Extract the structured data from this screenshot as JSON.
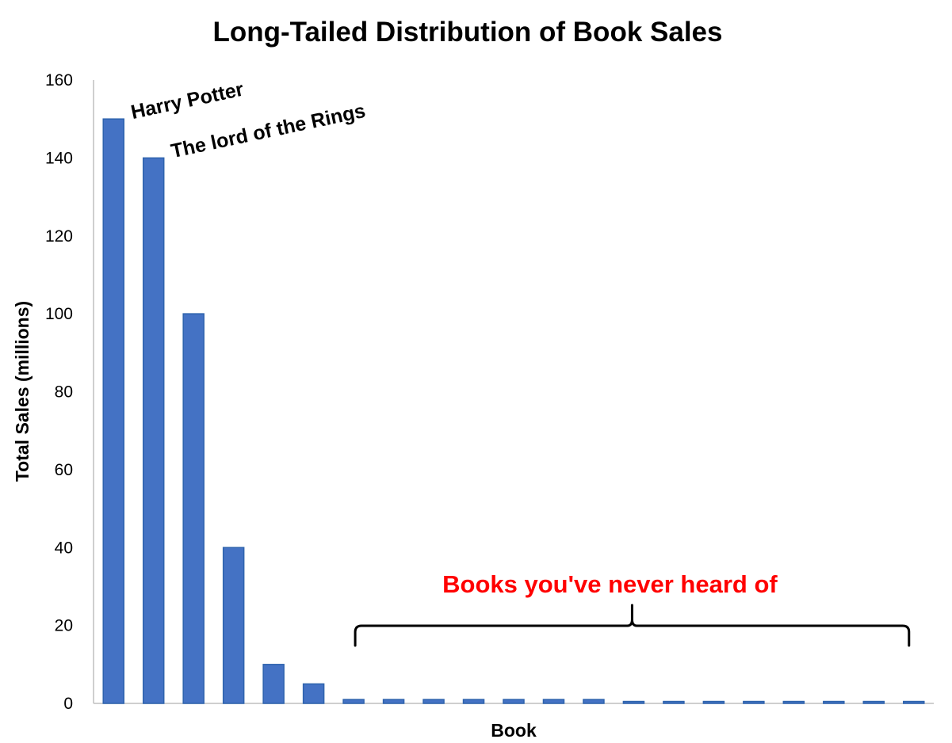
{
  "chart_data": {
    "type": "bar",
    "title": "Long-Tailed Distribution of Book Sales",
    "xlabel": "Book",
    "ylabel": "Total Sales (millions)",
    "ylim": [
      0,
      160
    ],
    "yticks": [
      "0",
      "20",
      "40",
      "60",
      "80",
      "100",
      "120",
      "140",
      "160"
    ],
    "grid": false,
    "values": [
      150,
      140,
      100,
      40,
      10,
      5,
      1,
      1,
      1,
      1,
      1,
      1,
      1,
      0.5,
      0.5,
      0.5,
      0.5,
      0.5,
      0.5,
      0.5,
      0.5
    ],
    "bar_color": "#4472c4",
    "bar_edge_color": "#2e63ad",
    "annotations": [
      {
        "text": "Harry Potter",
        "bar_index": 0
      },
      {
        "text": "The lord of the Rings",
        "bar_index": 1
      }
    ],
    "group_annotation": {
      "text": "Books you've never heard of",
      "color": "#ff0000",
      "from_bar": 6,
      "to_bar": 20
    }
  }
}
